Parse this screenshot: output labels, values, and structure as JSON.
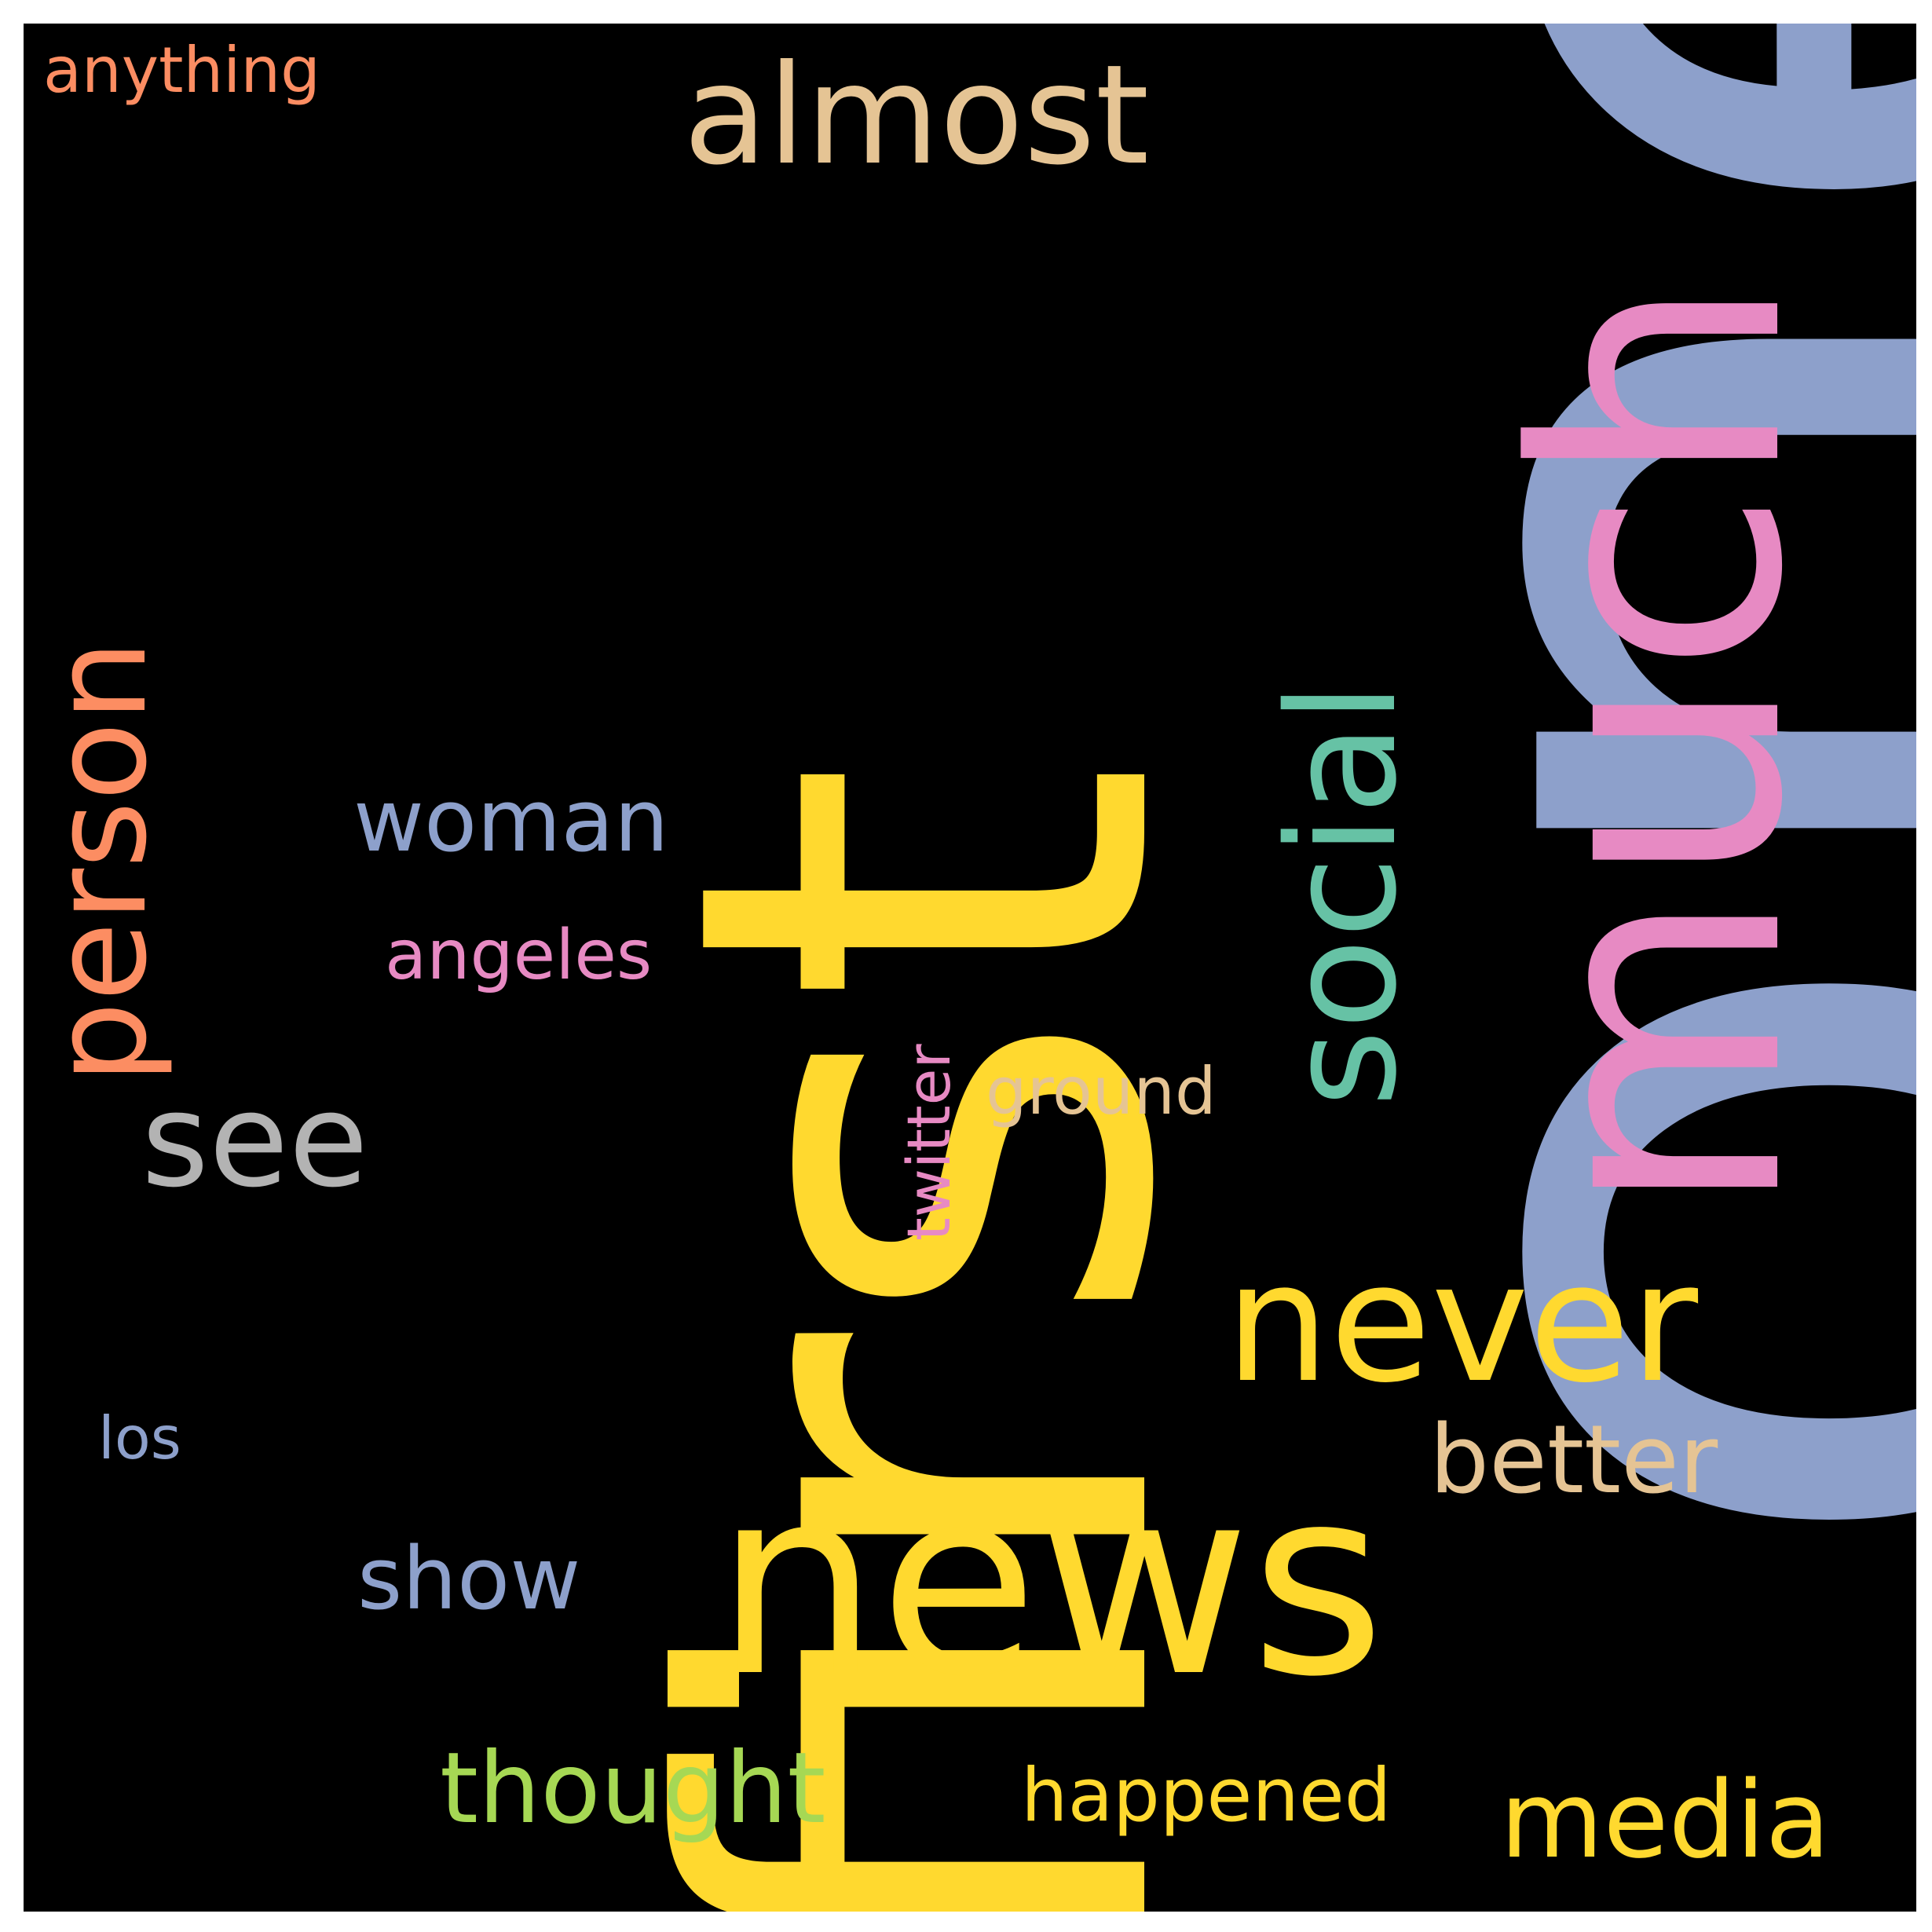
{
  "cloud": {
    "background": "#000000",
    "words": {
      "one": {
        "text": "one",
        "color": "#8da0cb",
        "orientation": "vertical"
      },
      "first": {
        "text": "first",
        "color": "#ffd92f",
        "orientation": "vertical"
      },
      "much": {
        "text": "much",
        "color": "#e78ac3",
        "orientation": "vertical"
      },
      "news": {
        "text": "news",
        "color": "#ffd92f",
        "orientation": "horizontal"
      },
      "almost": {
        "text": "almost",
        "color": "#e5c494",
        "orientation": "horizontal"
      },
      "social": {
        "text": "social",
        "color": "#66c2a5",
        "orientation": "vertical"
      },
      "person": {
        "text": "person",
        "color": "#fc8d62",
        "orientation": "vertical"
      },
      "never": {
        "text": "never",
        "color": "#ffd92f",
        "orientation": "horizontal"
      },
      "see": {
        "text": "see",
        "color": "#b3b3b3",
        "orientation": "horizontal"
      },
      "woman": {
        "text": "woman",
        "color": "#8da0cb",
        "orientation": "horizontal"
      },
      "angeles": {
        "text": "angeles",
        "color": "#e78ac3",
        "orientation": "horizontal"
      },
      "ground": {
        "text": "ground",
        "color": "#e5c494",
        "orientation": "horizontal"
      },
      "twitter": {
        "text": "twitter",
        "color": "#e78ac3",
        "orientation": "vertical"
      },
      "better": {
        "text": "better",
        "color": "#e5c494",
        "orientation": "horizontal"
      },
      "los": {
        "text": "los",
        "color": "#8da0cb",
        "orientation": "horizontal"
      },
      "show": {
        "text": "show",
        "color": "#8da0cb",
        "orientation": "horizontal"
      },
      "thought": {
        "text": "thought",
        "color": "#a6d854",
        "orientation": "horizontal"
      },
      "happened": {
        "text": "happened",
        "color": "#ffd92f",
        "orientation": "horizontal"
      },
      "media": {
        "text": "media",
        "color": "#ffd92f",
        "orientation": "horizontal"
      },
      "anything": {
        "text": "anything",
        "color": "#fc8d62",
        "orientation": "horizontal"
      }
    }
  }
}
